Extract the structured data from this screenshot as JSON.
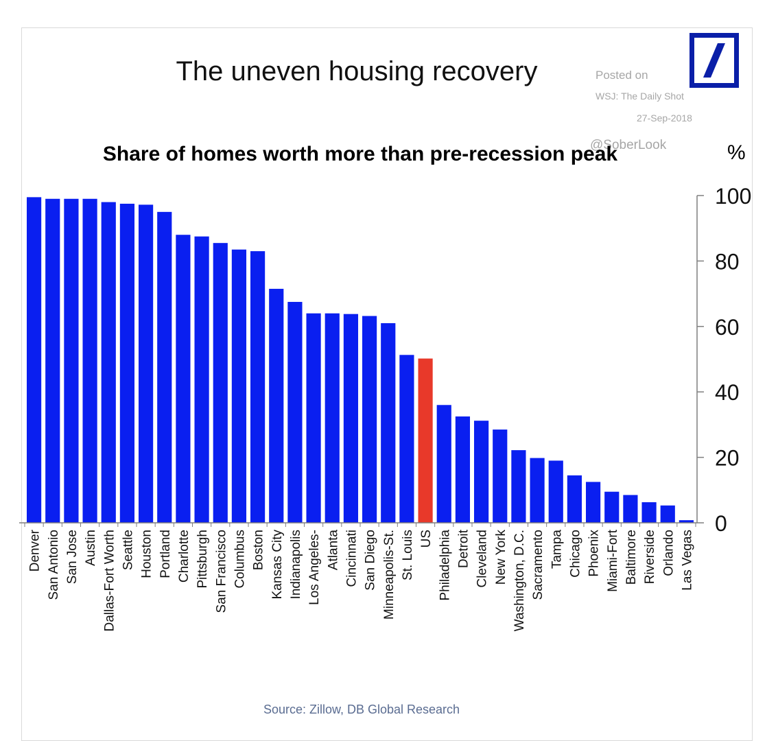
{
  "header": {
    "title": "The uneven housing recovery",
    "subtitle": "Share of homes worth more than pre-recession peak",
    "unit": "%"
  },
  "watermark": {
    "posted_on": "Posted on",
    "source": "WSJ: The Daily Shot",
    "date": "27-Sep-2018",
    "handle": "@SoberLook"
  },
  "footer": {
    "source": "Source: Zillow, DB Global Research"
  },
  "logo": {
    "name": "deutsche-bank-logo",
    "color": "#0a1fa8"
  },
  "chart_data": {
    "type": "bar",
    "title": "Share of homes worth more than pre-recession peak",
    "xlabel": "",
    "ylabel": "%",
    "ylim": [
      0,
      100
    ],
    "yticks": [
      0,
      20,
      40,
      60,
      80,
      100
    ],
    "y_axis_side": "right",
    "grid": false,
    "bar_color": "#0a1ff0",
    "highlight_color": "#e8392a",
    "highlight_category": "US",
    "categories": [
      "Denver",
      "San Antonio",
      "San Jose",
      "Austin",
      "Dallas-Fort Worth",
      "Seattle",
      "Houston",
      "Portland",
      "Charlotte",
      "Pittsburgh",
      "San Francisco",
      "Columbus",
      "Boston",
      "Kansas City",
      "Indianapolis",
      "Los Angeles-",
      "Atlanta",
      "Cincinnati",
      "San Diego",
      "Minneapolis-St.",
      "St. Louis",
      "US",
      "Philadelphia",
      "Detroit",
      "Cleveland",
      "New York",
      "Washington, D.C.",
      "Sacramento",
      "Tampa",
      "Chicago",
      "Phoenix",
      "Miami-Fort",
      "Baltimore",
      "Riverside",
      "Orlando",
      "Las Vegas"
    ],
    "values": [
      99.5,
      99,
      99,
      99,
      98,
      97.5,
      97.2,
      95,
      88,
      87.5,
      85.5,
      83.5,
      83,
      71.5,
      67.5,
      64,
      64,
      63.8,
      63.2,
      61,
      51.3,
      50.2,
      36,
      32.5,
      31.2,
      28.5,
      22.2,
      19.8,
      19,
      14.5,
      12.5,
      9.5,
      8.5,
      6.3,
      5.3,
      0.8
    ]
  }
}
